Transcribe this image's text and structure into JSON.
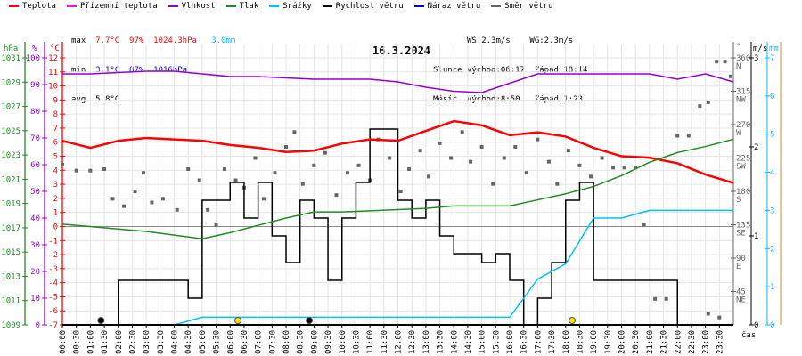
{
  "legend": [
    {
      "label": "Teplota",
      "color": "#ff0000"
    },
    {
      "label": "Přízemní teplota",
      "color": "#ff00ff"
    },
    {
      "label": "Vlhkost",
      "color": "#9400d3"
    },
    {
      "label": "Tlak",
      "color": "#228b22"
    },
    {
      "label": "Srážky",
      "color": "#00bfff"
    },
    {
      "label": "Rychlost větru",
      "color": "#000000"
    },
    {
      "label": "Náraz větru",
      "color": "#0000cd"
    },
    {
      "label": "Směr větru",
      "color": "#666666"
    }
  ],
  "stats": {
    "max_label": "max",
    "min_label": "min",
    "avg_label": "avg",
    "max_temp": "7.7°C",
    "max_hum": "97%",
    "max_press": "1024.3hPa",
    "max_rain": "3.0mm",
    "min_temp": "3.1°C",
    "min_hum": "87%",
    "min_press": "1016hPa",
    "avg_temp": "5.8°C"
  },
  "astro": {
    "ws": "WS:2.3m/s",
    "wg": "WG:2.3m/s",
    "sun_label": "Slunce",
    "sun_rise": "Východ:06:17",
    "sun_set": "Západ:18:14",
    "moon_label": "Měsíc",
    "moon_rise": "Východ:8:50",
    "moon_set": "Západ:1:23"
  },
  "chart_data": {
    "type": "line",
    "title": "16.3.2024",
    "xlabel": "čas",
    "axes": {
      "pressure": {
        "unit": "hPa",
        "range": [
          1009,
          1031
        ],
        "ticks": [
          1031,
          1029,
          1027,
          1025,
          1023,
          1021,
          1019,
          1017,
          1015,
          1013,
          1011,
          1009
        ]
      },
      "humidity": {
        "unit": "%",
        "range": [
          0,
          100
        ],
        "ticks": [
          100,
          90,
          80,
          70,
          60,
          50,
          40,
          30,
          20,
          10,
          0
        ]
      },
      "temperature": {
        "unit": "°C",
        "range": [
          -7,
          12
        ],
        "ticks": [
          12,
          11,
          10,
          9,
          8,
          7,
          6,
          5,
          4,
          3,
          2,
          1,
          0,
          -1,
          -2,
          -3,
          -4,
          -5,
          -6,
          -7
        ]
      },
      "direction": {
        "unit": "°",
        "range": [
          0,
          360
        ],
        "ticks": [
          {
            "v": 360,
            "l": "N"
          },
          {
            "v": 315,
            "l": "NW"
          },
          {
            "v": 270,
            "l": "W"
          },
          {
            "v": 225,
            "l": "SW"
          },
          {
            "v": 180,
            "l": "S"
          },
          {
            "v": 135,
            "l": "SE"
          },
          {
            "v": 90,
            "l": "E"
          },
          {
            "v": 45,
            "l": "NE"
          }
        ]
      },
      "wind": {
        "unit": "m/s",
        "range": [
          0,
          3.0
        ],
        "ticks": [
          3,
          2,
          1,
          0
        ]
      },
      "rain": {
        "unit": "mm",
        "range": [
          0,
          7
        ],
        "ticks": [
          7,
          6,
          5,
          4,
          3,
          2,
          1,
          0
        ]
      }
    },
    "x_ticks": [
      "00:00",
      "00:30",
      "01:00",
      "01:30",
      "02:00",
      "02:30",
      "03:00",
      "03:30",
      "04:00",
      "04:30",
      "05:00",
      "05:30",
      "06:00",
      "06:30",
      "07:00",
      "07:30",
      "08:00",
      "08:30",
      "09:00",
      "09:30",
      "10:00",
      "10:30",
      "11:00",
      "11:30",
      "12:00",
      "12:30",
      "13:00",
      "13:30",
      "14:00",
      "14:30",
      "15:00",
      "15:30",
      "16:00",
      "16:30",
      "17:00",
      "17:30",
      "18:00",
      "18:30",
      "19:00",
      "19:30",
      "20:00",
      "20:30",
      "21:00",
      "21:30",
      "22:00",
      "22:30",
      "23:00",
      "23:30"
    ],
    "hours": [
      0,
      1,
      2,
      3,
      4,
      5,
      6,
      7,
      8,
      9,
      10,
      11,
      12,
      13,
      14,
      15,
      16,
      17,
      18,
      19,
      20,
      21,
      22,
      23,
      24
    ],
    "series": [
      {
        "name": "Teplota",
        "axis": "temperature",
        "color": "#ff0000",
        "values": [
          6.1,
          5.6,
          6.1,
          6.3,
          6.2,
          6.1,
          5.8,
          5.6,
          5.3,
          5.4,
          5.9,
          6.2,
          6.1,
          6.8,
          7.5,
          7.2,
          6.5,
          6.7,
          6.4,
          5.6,
          5.0,
          4.9,
          4.5,
          3.7,
          3.1
        ]
      },
      {
        "name": "Vlhkost",
        "axis": "humidity",
        "color": "#9400d3",
        "values": [
          94,
          94,
          94.5,
          95,
          95,
          94,
          93,
          93,
          92.5,
          92,
          92,
          92,
          91,
          89,
          87.5,
          87,
          90.5,
          94,
          94,
          94,
          94,
          94,
          92,
          94,
          91
        ]
      },
      {
        "name": "Tlak",
        "axis": "pressure",
        "color": "#228b22",
        "values": [
          1017.3,
          1017.1,
          1016.9,
          1016.7,
          1016.4,
          1016.1,
          1016.6,
          1017.2,
          1017.8,
          1018.3,
          1018.3,
          1018.4,
          1018.5,
          1018.6,
          1018.8,
          1018.8,
          1018.8,
          1019.3,
          1019.8,
          1020.4,
          1021.3,
          1022.4,
          1023.2,
          1023.7,
          1024.3
        ]
      },
      {
        "name": "Srážky",
        "axis": "rain",
        "color": "#00bfff",
        "values": [
          0,
          0,
          0,
          0,
          0,
          0.2,
          0.2,
          0.2,
          0.2,
          0.2,
          0.2,
          0.2,
          0.2,
          0.2,
          0.2,
          0.2,
          0.2,
          1.2,
          1.6,
          2.8,
          2.8,
          3.0,
          3.0,
          3.0,
          3.0
        ]
      }
    ],
    "wind_speed": {
      "axis": "wind",
      "color": "#000000",
      "step_hours": 0.5,
      "values": [
        0,
        0,
        0,
        0,
        0.5,
        0.5,
        0.5,
        0.5,
        0.5,
        0.3,
        1.4,
        1.4,
        1.6,
        1.2,
        1.6,
        1.0,
        0.7,
        1.4,
        1.2,
        0.5,
        1.2,
        1.6,
        2.2,
        2.2,
        1.4,
        1.2,
        1.4,
        1.0,
        0.8,
        0.8,
        0.7,
        0.8,
        0.5,
        0,
        0.3,
        0.7,
        1.4,
        1.6,
        0.5,
        0.5,
        0.5,
        0.5,
        0.5,
        0.5,
        0,
        0,
        0,
        0,
        0
      ]
    },
    "wind_direction": {
      "axis": "direction",
      "color": "#666666",
      "points": [
        [
          0,
          216
        ],
        [
          0.5,
          208
        ],
        [
          1,
          208
        ],
        [
          1.5,
          210
        ],
        [
          1.8,
          170
        ],
        [
          2.2,
          160
        ],
        [
          2.6,
          180
        ],
        [
          2.9,
          205
        ],
        [
          3.2,
          165
        ],
        [
          3.6,
          170
        ],
        [
          4.1,
          155
        ],
        [
          4.5,
          210
        ],
        [
          4.9,
          195
        ],
        [
          5.2,
          155
        ],
        [
          5.5,
          135
        ],
        [
          5.8,
          210
        ],
        [
          6.2,
          195
        ],
        [
          6.5,
          185
        ],
        [
          6.9,
          225
        ],
        [
          7.2,
          170
        ],
        [
          7.6,
          205
        ],
        [
          8,
          240
        ],
        [
          8.3,
          260
        ],
        [
          8.6,
          190
        ],
        [
          9,
          215
        ],
        [
          9.4,
          232
        ],
        [
          9.8,
          175
        ],
        [
          10.2,
          205
        ],
        [
          10.6,
          215
        ],
        [
          11,
          195
        ],
        [
          11.3,
          250
        ],
        [
          11.7,
          225
        ],
        [
          12.1,
          180
        ],
        [
          12.4,
          210
        ],
        [
          12.8,
          235
        ],
        [
          13.1,
          200
        ],
        [
          13.5,
          245
        ],
        [
          13.9,
          225
        ],
        [
          14.3,
          260
        ],
        [
          14.6,
          220
        ],
        [
          15,
          240
        ],
        [
          15.4,
          190
        ],
        [
          15.8,
          225
        ],
        [
          16.2,
          240
        ],
        [
          16.6,
          205
        ],
        [
          17,
          250
        ],
        [
          17.4,
          220
        ],
        [
          17.7,
          190
        ],
        [
          18.1,
          235
        ],
        [
          18.5,
          215
        ],
        [
          18.9,
          200
        ],
        [
          19.3,
          225
        ],
        [
          19.7,
          212
        ],
        [
          20.1,
          212
        ],
        [
          20.5,
          212
        ],
        [
          20.8,
          135
        ],
        [
          21.2,
          35
        ],
        [
          21.6,
          35
        ],
        [
          22,
          255
        ],
        [
          22.4,
          255
        ],
        [
          22.8,
          295
        ],
        [
          23.1,
          300
        ],
        [
          23.4,
          355
        ],
        [
          23.7,
          355
        ],
        [
          23.9,
          335
        ],
        [
          23.1,
          15
        ],
        [
          23.5,
          10
        ]
      ]
    },
    "markers": [
      {
        "time": 1.38,
        "type": "moon"
      },
      {
        "time": 6.28,
        "type": "sun"
      },
      {
        "time": 8.83,
        "type": "moon"
      },
      {
        "time": 18.23,
        "type": "sun"
      }
    ]
  }
}
